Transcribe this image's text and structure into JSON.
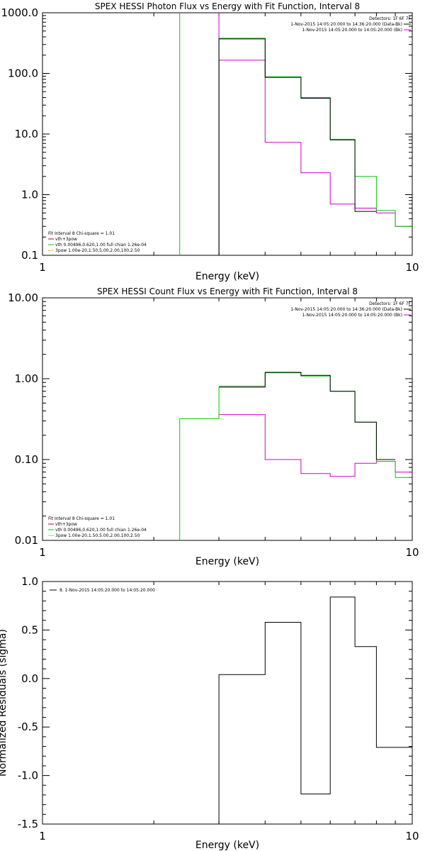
{
  "chart_data": [
    {
      "type": "line",
      "title": "SPEX HESSI Photon Flux vs Energy with Fit Function, Interval 8",
      "xlabel": "Energy (keV)",
      "ylabel": "",
      "xscale": "log",
      "yscale": "log",
      "xlim": [
        1,
        10
      ],
      "ylim": [
        0.1,
        1000
      ],
      "x_ticks": [
        "1",
        "10"
      ],
      "y_ticks": [
        "0.1",
        "1.0",
        "10.0",
        "100.0",
        "1000.0"
      ],
      "legend_top_right": [
        "Detectors: 1F 6F 7F",
        "1-Nov-2015 14:05:20.000 to 14:36:20.000 (Data-Bk)",
        "1-Nov-2015 14:05:20.000 to 14:05:20.000 (Bk)"
      ],
      "legend_bottom_left": [
        "Fit Interval 8   Chi-square = 1.01",
        "vth+3pow",
        "vth 0.00496,0.620,1.00  full chian 1.26e-04",
        "3pow 1.00e-20,1.50,5.00,2.00,100,2.50"
      ],
      "colors": {
        "data": "#000000",
        "fit": "#00cc00",
        "bk": "#cc00cc"
      },
      "edges": [
        3,
        4,
        5,
        6,
        7,
        8,
        9,
        10
      ],
      "series": [
        {
          "name": "Data-Bk",
          "values": [
            370,
            86,
            39,
            8.0,
            0.53,
            null,
            null
          ]
        },
        {
          "name": "vth+3pow",
          "values": [
            380,
            88,
            40,
            8.2,
            2.0,
            0.55,
            0.3
          ]
        },
        {
          "name": "Bk",
          "values": [
            165,
            7.3,
            2.3,
            0.7,
            0.6,
            0.5,
            0.3
          ]
        }
      ],
      "vlines": [
        {
          "x": 2.35,
          "color": "#00cc00"
        },
        {
          "x": 3.0,
          "color": "#cc00cc"
        }
      ]
    },
    {
      "type": "line",
      "title": "SPEX HESSI Count Flux vs Energy with Fit Function, Interval 8",
      "xlabel": "Energy (keV)",
      "ylabel": "",
      "xscale": "log",
      "yscale": "log",
      "xlim": [
        1,
        10
      ],
      "ylim": [
        0.01,
        10
      ],
      "x_ticks": [
        "1",
        "10"
      ],
      "y_ticks": [
        "0.01",
        "0.10",
        "1.00",
        "10.00"
      ],
      "legend_top_right": [
        "Detectors: 1F 6F 7F",
        "1-Nov-2015 14:05:20.000 to 14:36:20.000 (Data-Bk)",
        "1-Nov-2015 14:05:20.000 to 14:05:20.000 (Bk)"
      ],
      "legend_bottom_left": [
        "Fit Interval 8   Chi-square = 1.01",
        "vth+3pow",
        "vth 0.00496,0.620,1.00  full chian 1.26e-04",
        "3pow 1.00e-20,1.50,5.00,2.00,100,2.50"
      ],
      "colors": {
        "data": "#000000",
        "fit": "#00cc00",
        "bk": "#cc00cc"
      },
      "edges": [
        2.35,
        3,
        4,
        5,
        6,
        7,
        8,
        9,
        10
      ],
      "series": [
        {
          "name": "Data-Bk",
          "values": [
            null,
            0.8,
            1.2,
            1.1,
            0.7,
            0.29,
            0.1,
            null
          ]
        },
        {
          "name": "vth+3pow",
          "values": [
            0.32,
            0.78,
            1.18,
            1.08,
            0.7,
            0.29,
            0.095,
            0.06
          ]
        },
        {
          "name": "Bk",
          "values": [
            null,
            0.36,
            0.1,
            0.067,
            0.062,
            0.09,
            0.095,
            0.07
          ]
        }
      ]
    },
    {
      "type": "line",
      "title": "",
      "xlabel": "Energy (keV)",
      "ylabel": "Normalized Residuals (sigma)",
      "xscale": "log",
      "xlim": [
        1,
        10
      ],
      "ylim": [
        -1.5,
        1.0
      ],
      "x_ticks": [
        "1",
        "10"
      ],
      "y_ticks": [
        "-1.5",
        "-1.0",
        "-0.5",
        "0.0",
        "0.5",
        "1.0"
      ],
      "legend_top_left": [
        "8.  1-Nov-2015 14:05:20.000 to 14:05:20.000"
      ],
      "edges": [
        3,
        4,
        5,
        6,
        7,
        8,
        9,
        10
      ],
      "series": [
        {
          "name": "8.  1-Nov-2015 14:05:20.000 to 14:05:20.000",
          "values": [
            0.04,
            0.58,
            -1.19,
            0.84,
            0.33,
            -0.71,
            -0.71
          ]
        }
      ]
    }
  ]
}
